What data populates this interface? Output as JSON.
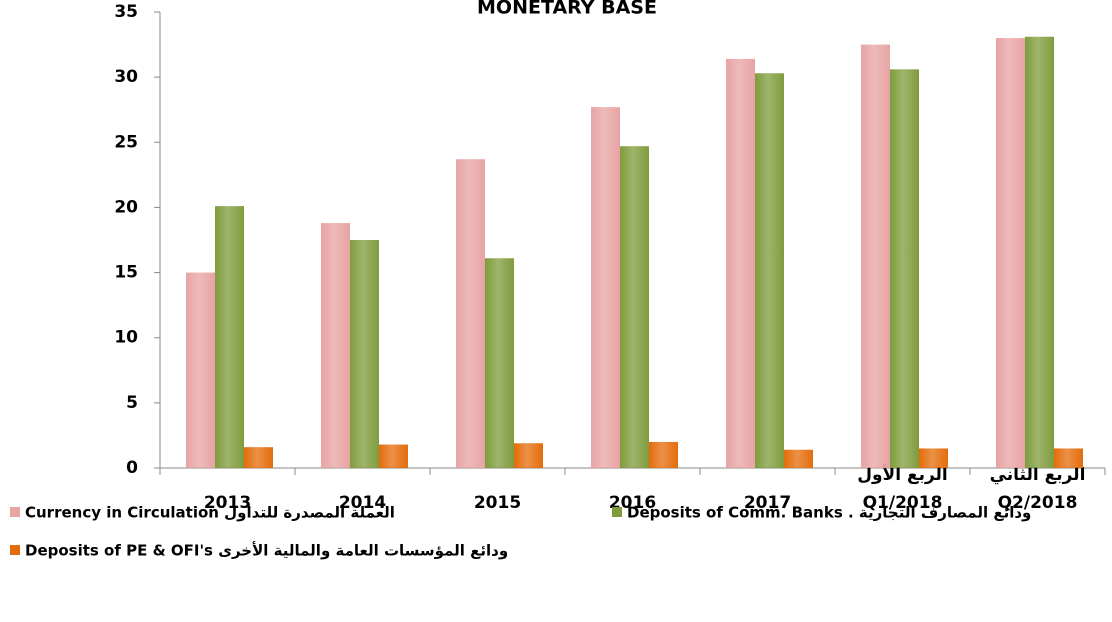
{
  "chart_data": {
    "type": "bar",
    "title": "MONETARY BASE",
    "categories": [
      [
        "2013"
      ],
      [
        "2014"
      ],
      [
        "2015"
      ],
      [
        "2016"
      ],
      [
        "2017"
      ],
      [
        "الربع الأول",
        "Q1/2018"
      ],
      [
        "الربع الثاني",
        "Q2/2018"
      ]
    ],
    "series": [
      {
        "name": "Currency in Circulation العملة المصدرة للتداول",
        "color": "#e8a3a3",
        "values": [
          15.0,
          18.8,
          23.7,
          27.7,
          31.4,
          32.5,
          33.0
        ]
      },
      {
        "name": "Deposits of Comm. Banks . ودائع المصارف التجارية",
        "color": "#7f9c3c",
        "values": [
          20.1,
          17.5,
          16.1,
          24.7,
          30.3,
          30.6,
          33.1
        ]
      },
      {
        "name": "Deposits of PE & OFI's ودائع المؤسسات العامة والمالية الأخرى",
        "color": "#e46c0a",
        "values": [
          1.6,
          1.8,
          1.9,
          2.0,
          1.4,
          1.5,
          1.5
        ]
      }
    ],
    "ylim": [
      0,
      35
    ],
    "yticks": [
      0,
      5,
      10,
      15,
      20,
      25,
      30,
      35
    ],
    "grid": false
  }
}
